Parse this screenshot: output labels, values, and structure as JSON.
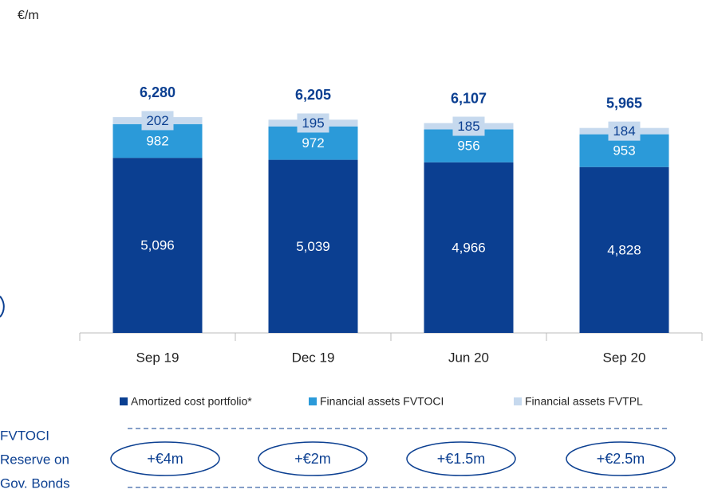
{
  "chart_data": {
    "type": "bar",
    "stacked": true,
    "unit_label": "€/m",
    "categories": [
      "Sep 19",
      "Dec 19",
      "Jun 20",
      "Sep 20"
    ],
    "series": [
      {
        "name": "Amortized cost portfolio*",
        "color": "#0b3f91",
        "values": [
          5096,
          5039,
          4966,
          4828
        ],
        "value_labels": [
          "5,096",
          "5,039",
          "4,966",
          "4,828"
        ]
      },
      {
        "name": "Financial assets FVTOCI",
        "color": "#2b9ad9",
        "values": [
          982,
          972,
          956,
          953
        ]
      },
      {
        "name": "Financial assets FVTPL",
        "color": "#c6d9ee",
        "values": [
          202,
          195,
          185,
          184
        ]
      }
    ],
    "totals": [
      {
        "value": 6280,
        "label": "6,280"
      },
      {
        "value": 6205,
        "label": "6,205"
      },
      {
        "value": 6107,
        "label": "6,107"
      },
      {
        "value": 5965,
        "label": "5,965"
      }
    ],
    "ylim": [
      0,
      7000
    ],
    "reserve": {
      "label": [
        "FVTOCI",
        "Reserve on",
        "Gov. Bonds"
      ],
      "values": [
        "+€4m",
        "+€2m",
        "+€1.5m",
        "+€2.5m"
      ]
    }
  }
}
